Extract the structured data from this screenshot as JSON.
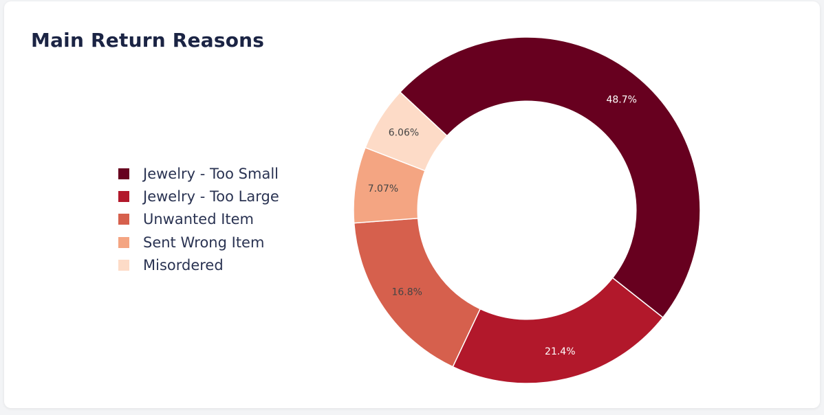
{
  "card": {
    "title": "Main Return Reasons"
  },
  "chart_data": {
    "type": "pie",
    "hole": 0.63,
    "title": "Main Return Reasons",
    "legend_position": "left",
    "categories": [
      "Jewelry - Too Small",
      "Jewelry - Too Large",
      "Unwanted Item",
      "Sent Wrong Item",
      "Misordered"
    ],
    "values": [
      48.7,
      21.4,
      16.8,
      7.07,
      6.06
    ],
    "data_labels": [
      "48.7%",
      "21.4%",
      "16.8%",
      "7.07%",
      "6.06%"
    ],
    "colors": [
      "#67001f",
      "#b2182b",
      "#d6604d",
      "#f4a582",
      "#fddbc7"
    ],
    "label_colors": [
      "#ffffff",
      "#ffffff",
      "#444444",
      "#444444",
      "#444444"
    ]
  }
}
